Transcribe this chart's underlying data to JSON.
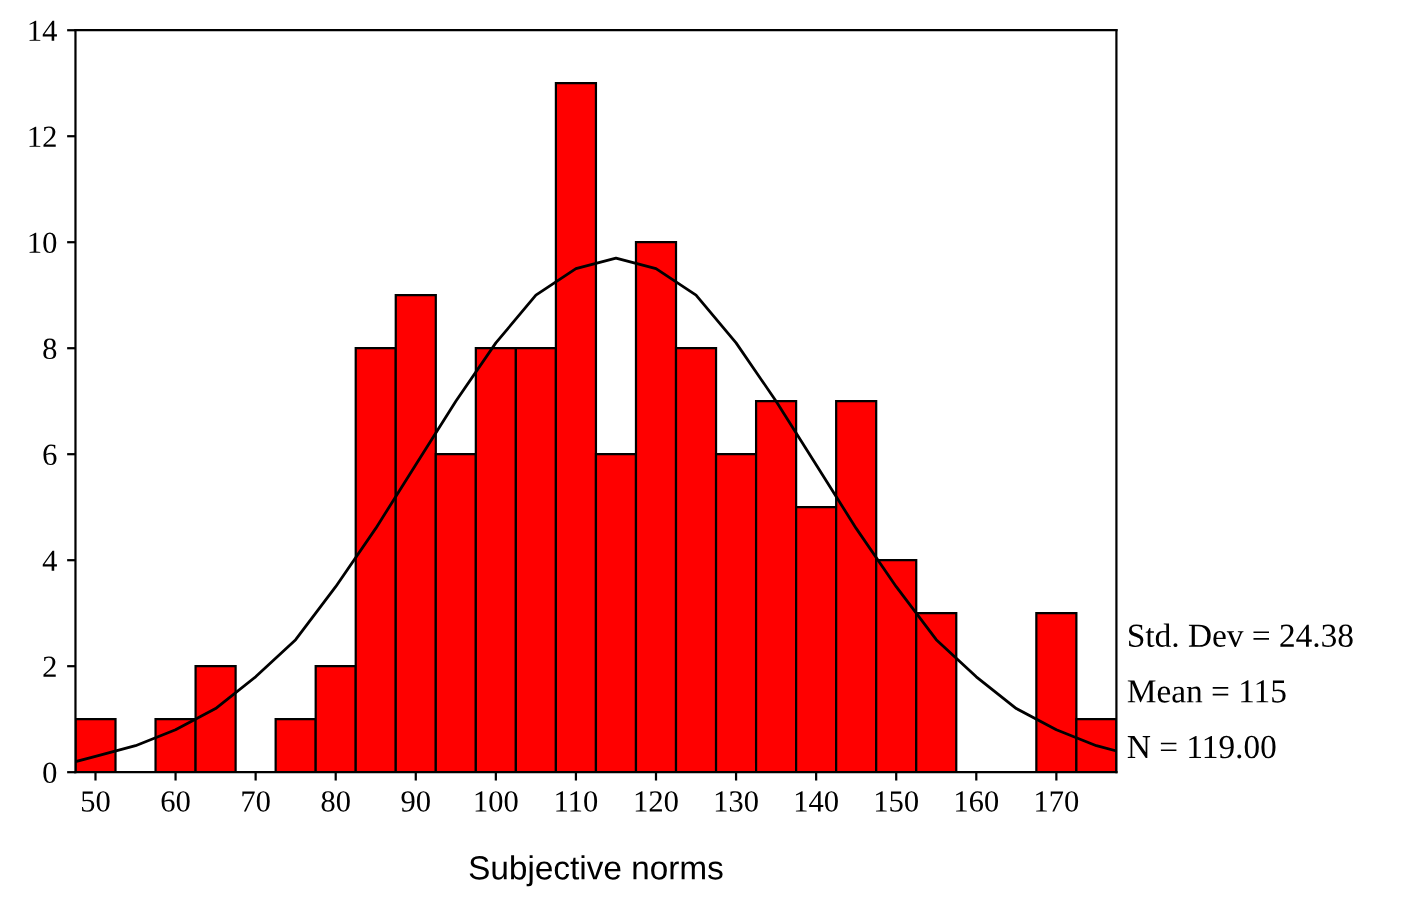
{
  "chart_data": {
    "type": "histogram",
    "xlabel": "Subjective norms",
    "bins": [
      47.5,
      52.5,
      57.5,
      62.5,
      67.5,
      72.5,
      77.5,
      82.5,
      87.5,
      92.5,
      97.5,
      102.5,
      107.5,
      112.5,
      117.5,
      122.5,
      127.5,
      132.5,
      137.5,
      142.5,
      147.5,
      152.5,
      157.5,
      162.5,
      167.5,
      172.5,
      177.5
    ],
    "values": [
      1,
      0,
      1,
      2,
      0,
      1,
      2,
      8,
      9,
      6,
      8,
      8,
      13,
      6,
      10,
      8,
      6,
      7,
      5,
      7,
      4,
      3,
      0,
      0,
      3,
      1
    ],
    "color": "#ff0000",
    "series": [
      {
        "type": "line",
        "color": "#000000",
        "x": [
          47.5,
          50,
          55,
          60,
          65,
          70,
          75,
          80,
          85,
          90,
          95,
          100,
          105,
          110,
          115,
          120,
          125,
          130,
          135,
          140,
          145,
          150,
          155,
          160,
          165,
          170,
          175,
          177.5
        ],
        "values": [
          0.2,
          0.3,
          0.5,
          0.8,
          1.2,
          1.8,
          2.5,
          3.5,
          4.6,
          5.8,
          7.0,
          8.1,
          9.0,
          9.5,
          9.7,
          9.5,
          9.0,
          8.1,
          7.0,
          5.8,
          4.6,
          3.5,
          2.5,
          1.8,
          1.2,
          0.8,
          0.5,
          0.4
        ]
      }
    ],
    "xlim": [
      47.5,
      177.5
    ],
    "xticks": [
      50,
      60,
      70,
      80,
      90,
      100,
      110,
      120,
      130,
      140,
      150,
      160,
      170
    ],
    "ylim": [
      0,
      14
    ],
    "yticks": [
      0,
      2,
      4,
      6,
      8,
      10,
      12,
      14
    ],
    "annotations": [
      "Std. Dev = 24.38",
      "Mean = 115",
      "N = 119.00"
    ],
    "grid": false,
    "legend": false
  }
}
